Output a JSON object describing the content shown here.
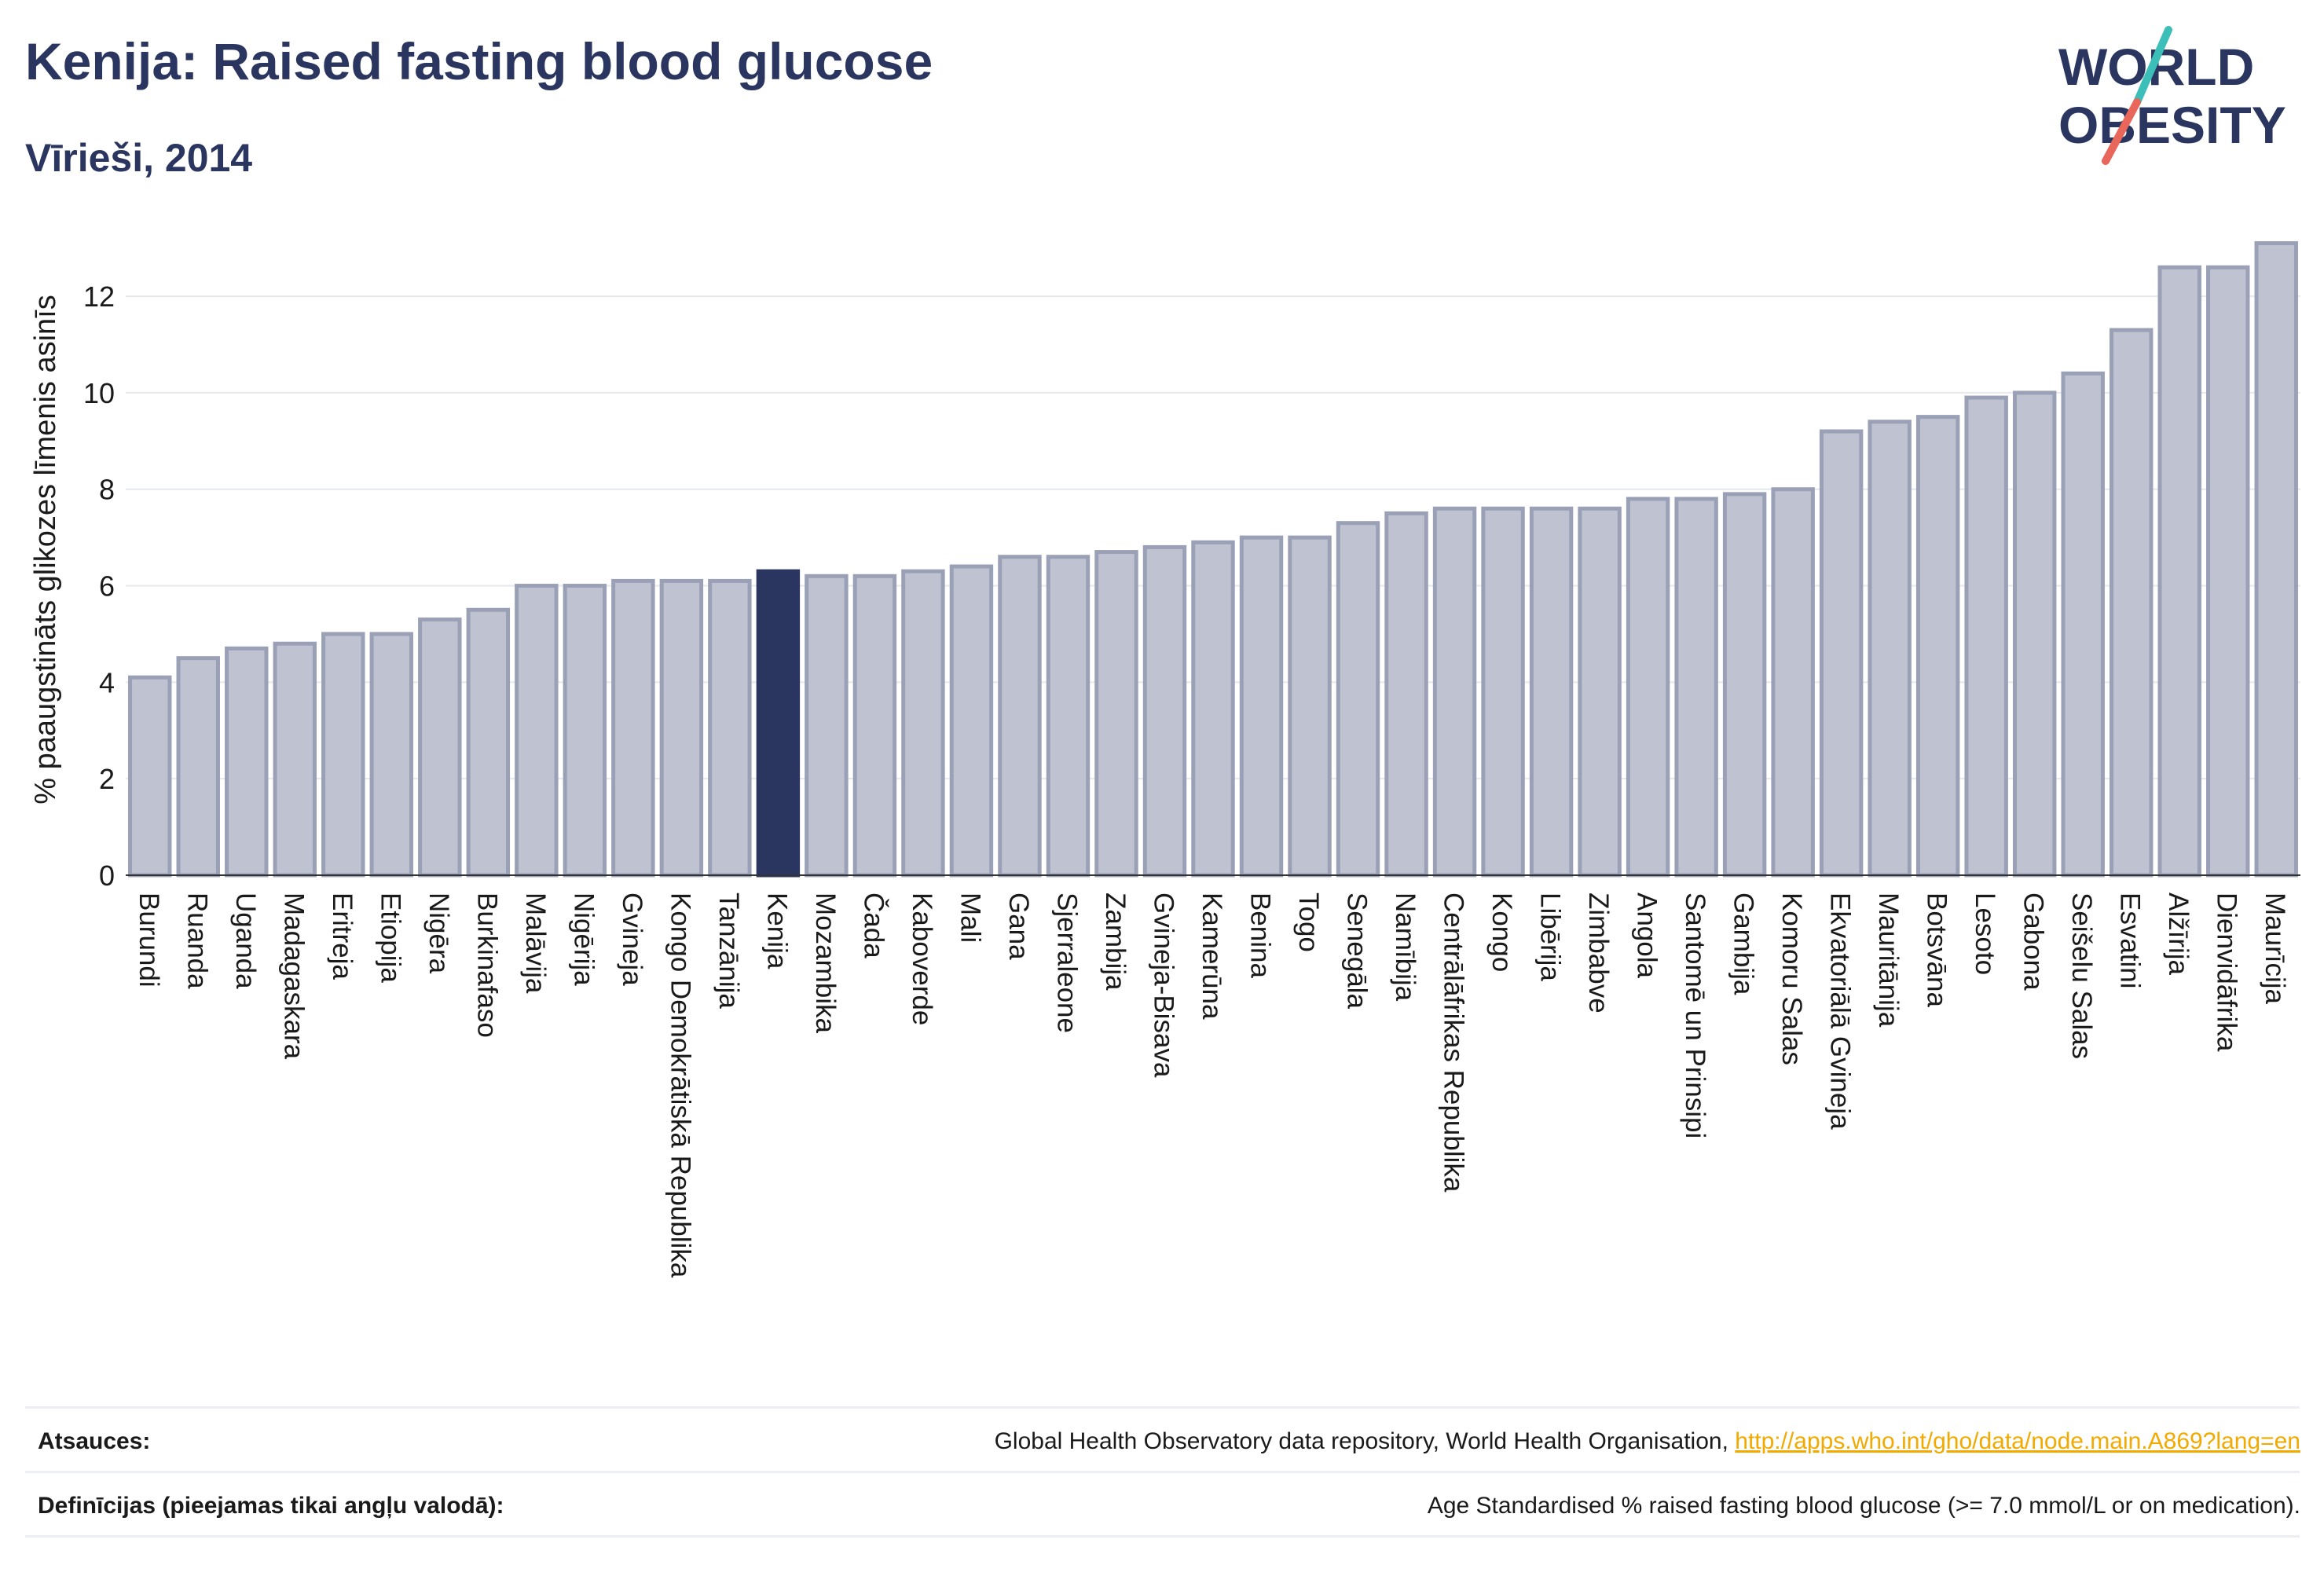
{
  "title": "Kenija: Raised fasting blood glucose",
  "subtitle": "Vīrieši, 2014",
  "logo": {
    "line1": "WORLD",
    "line2": "OBESITY"
  },
  "colors": {
    "bar": "#bfc3d1",
    "bar_stroke": "#9aa0b6",
    "highlight": "#2b3660",
    "title": "#2b3660",
    "grid": "#e6e8ee",
    "link": "#f2a900",
    "logo_teal": "#3bbfb8",
    "logo_red": "#e8665a"
  },
  "chart_data": {
    "type": "bar",
    "ylabel": "% paaugstināts glikozes līmenis asinīs",
    "ylim": [
      0,
      13.5
    ],
    "yticks": [
      0,
      2,
      4,
      6,
      8,
      10,
      12
    ],
    "highlight": "Kenija",
    "categories": [
      "Burundi",
      "Ruanda",
      "Uganda",
      "Madagaskara",
      "Eritreja",
      "Etiopija",
      "Nigēra",
      "Burkinafaso",
      "Malāvija",
      "Nigērija",
      "Gvineja",
      "Kongo Demokrātiskā Republika",
      "Tanzānija",
      "Kenija",
      "Mozambika",
      "Čada",
      "Kaboverde",
      "Mali",
      "Gana",
      "Sjerraleone",
      "Zambija",
      "Gvineja-Bisava",
      "Kamerūna",
      "Benina",
      "Togo",
      "Senegāla",
      "Namībija",
      "Centrālāfrikas Republika",
      "Kongo",
      "Libērija",
      "Zimbabve",
      "Angola",
      "Santomē un Prinsipi",
      "Gambija",
      "Komoru Salas",
      "Ekvatoriālā Gvineja",
      "Mauritānija",
      "Botsvāna",
      "Lesoto",
      "Gabona",
      "Seišelu Salas",
      "Esvatini",
      "Alžīrija",
      "Dienvidāfrika",
      "Maurīcija"
    ],
    "values": [
      4.1,
      4.5,
      4.7,
      4.8,
      5.0,
      5.0,
      5.3,
      5.5,
      6.0,
      6.0,
      6.1,
      6.1,
      6.1,
      6.3,
      6.2,
      6.2,
      6.3,
      6.4,
      6.6,
      6.6,
      6.7,
      6.8,
      6.9,
      7.0,
      7.0,
      7.3,
      7.5,
      7.6,
      7.6,
      7.6,
      7.6,
      7.8,
      7.8,
      7.9,
      8.0,
      9.2,
      9.4,
      9.5,
      9.9,
      10.0,
      10.4,
      11.3,
      12.6,
      12.6,
      13.1
    ]
  },
  "footer": {
    "sources_label": "Atsauces:",
    "sources_text": "Global Health Observatory data repository, World Health Organisation,",
    "sources_link": "http://apps.who.int/gho/data/node.main.A869?lang=en",
    "definitions_label": "Definīcijas (pieejamas tikai angļu valodā):",
    "definitions_text": "Age Standardised % raised fasting blood glucose (>= 7.0 mmol/L or on medication)."
  }
}
